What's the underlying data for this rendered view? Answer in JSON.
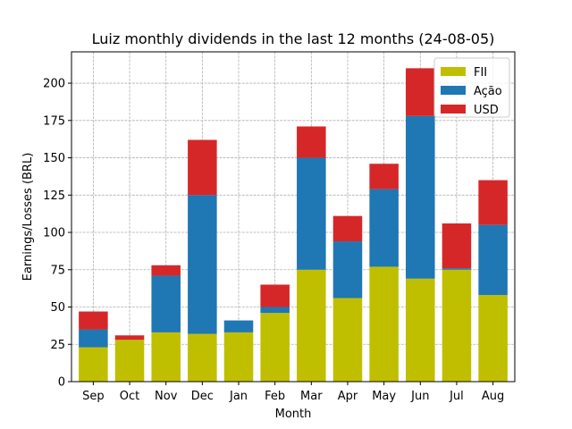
{
  "chart_data": {
    "type": "bar",
    "stacked": true,
    "title": "Luiz monthly dividends in the last 12 months (24-08-05)",
    "xlabel": "Month",
    "ylabel": "Earnings/Losses (BRL)",
    "categories": [
      "Sep",
      "Oct",
      "Nov",
      "Dec",
      "Jan",
      "Feb",
      "Mar",
      "Apr",
      "May",
      "Jun",
      "Jul",
      "Aug"
    ],
    "ylim": [
      0,
      221
    ],
    "yticks": [
      0,
      25,
      50,
      75,
      100,
      125,
      150,
      175,
      200
    ],
    "grid": true,
    "legend_position": "top-right",
    "series": [
      {
        "name": "FII",
        "color": "#bfbf00",
        "values": [
          23,
          28,
          33,
          32,
          33,
          46,
          75,
          56,
          77,
          69,
          75,
          58
        ]
      },
      {
        "name": "Ação",
        "color": "#1f77b4",
        "values": [
          12,
          0,
          38,
          93,
          8,
          4,
          75,
          38,
          52,
          109,
          1,
          47
        ]
      },
      {
        "name": "USD",
        "color": "#d62728",
        "values": [
          12,
          3,
          7,
          37,
          0,
          15,
          21,
          17,
          17,
          32,
          30,
          30
        ]
      }
    ]
  }
}
